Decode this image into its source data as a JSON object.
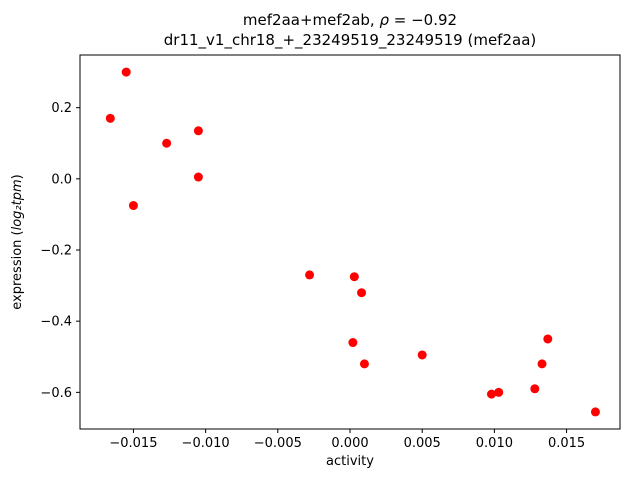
{
  "figure": {
    "title": {
      "line1_parts": [
        {
          "text": "mef2aa+mef2ab, ",
          "italic": false
        },
        {
          "text": "ρ",
          "italic": true
        },
        {
          "text": " = −0.92",
          "italic": false
        }
      ],
      "line2": "dr11_v1_chr18_+_23249519_23249519 (mef2aa)"
    },
    "xlabel": "activity",
    "ylabel_parts": [
      {
        "text": "expression (",
        "italic": false
      },
      {
        "text": "log₂tpm",
        "italic": true
      },
      {
        "text": ")",
        "italic": false
      }
    ]
  },
  "chart_data": {
    "type": "scatter",
    "title": "mef2aa+mef2ab, ρ = −0.92\ndr11_v1_chr18_+_23249519_23249519 (mef2aa)",
    "xlabel": "activity",
    "ylabel": "expression (log₂tpm)",
    "legend": "none",
    "grid": false,
    "marker_color": "#ff0000",
    "marker_radius": 4.5,
    "xlim": [
      -0.0187,
      0.0187
    ],
    "ylim": [
      -0.703,
      0.348
    ],
    "xticks": [
      -0.015,
      -0.01,
      -0.005,
      0.0,
      0.005,
      0.01,
      0.015
    ],
    "xtick_labels": [
      "−0.015",
      "−0.010",
      "−0.005",
      "0.000",
      "0.005",
      "0.010",
      "0.015"
    ],
    "yticks": [
      -0.6,
      -0.4,
      -0.2,
      0.0,
      0.2
    ],
    "ytick_labels": [
      "−0.6",
      "−0.4",
      "−0.2",
      "0.0",
      "0.2"
    ],
    "points": [
      {
        "x": -0.0166,
        "y": 0.17
      },
      {
        "x": -0.0155,
        "y": 0.3
      },
      {
        "x": -0.015,
        "y": -0.075
      },
      {
        "x": -0.0127,
        "y": 0.1
      },
      {
        "x": -0.0105,
        "y": 0.135
      },
      {
        "x": -0.0105,
        "y": 0.005
      },
      {
        "x": -0.0028,
        "y": -0.27
      },
      {
        "x": 0.0003,
        "y": -0.275
      },
      {
        "x": 0.0008,
        "y": -0.32
      },
      {
        "x": 0.0002,
        "y": -0.46
      },
      {
        "x": 0.001,
        "y": -0.52
      },
      {
        "x": 0.005,
        "y": -0.495
      },
      {
        "x": 0.0098,
        "y": -0.605
      },
      {
        "x": 0.0103,
        "y": -0.6
      },
      {
        "x": 0.0128,
        "y": -0.59
      },
      {
        "x": 0.0133,
        "y": -0.52
      },
      {
        "x": 0.0137,
        "y": -0.45
      },
      {
        "x": 0.017,
        "y": -0.655
      }
    ]
  }
}
